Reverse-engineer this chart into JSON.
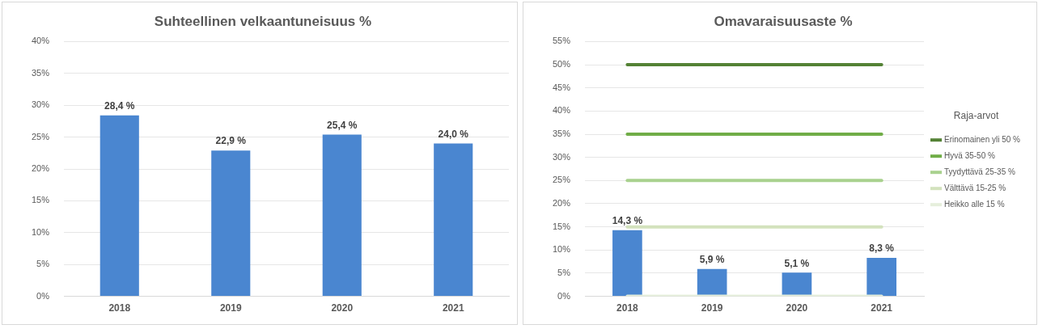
{
  "chart_data": [
    {
      "type": "bar",
      "title": "Suhteellinen velkaantuneisuus %",
      "categories": [
        "2018",
        "2019",
        "2020",
        "2021"
      ],
      "series": [
        {
          "color": "#4a86d0",
          "values": [
            28.4,
            22.9,
            25.4,
            24.0
          ],
          "value_labels": [
            "28,4 %",
            "22,9 %",
            "25,4 %",
            "24,0 %"
          ]
        }
      ],
      "ylim": [
        0,
        40
      ],
      "yticks": [
        {
          "value": 0,
          "label": "0%"
        },
        {
          "value": 5,
          "label": "5%"
        },
        {
          "value": 10,
          "label": "10%"
        },
        {
          "value": 15,
          "label": "15%"
        },
        {
          "value": 20,
          "label": "20%"
        },
        {
          "value": 25,
          "label": "25%"
        },
        {
          "value": 30,
          "label": "30%"
        },
        {
          "value": 35,
          "label": "35%"
        },
        {
          "value": 40,
          "label": "40%"
        }
      ],
      "grid": "y",
      "legend": false
    },
    {
      "type": "bar",
      "title": "Omavaraisuusaste %",
      "legend_title": "Raja-arvot",
      "categories": [
        "2018",
        "2019",
        "2020",
        "2021"
      ],
      "series": [
        {
          "color": "#4a86d0",
          "values": [
            14.3,
            5.9,
            5.1,
            8.3
          ],
          "value_labels": [
            "14,3 %",
            "5,9 %",
            "5,1 %",
            "8,3 %"
          ]
        },
        {
          "type": "line",
          "name": "Erinomainen yli 50 %",
          "color": "#548235",
          "values": [
            50,
            50,
            50,
            50
          ]
        },
        {
          "type": "line",
          "name": "Hyvä 35-50 %",
          "color": "#70ad47",
          "values": [
            35,
            35,
            35,
            35
          ]
        },
        {
          "type": "line",
          "name": "Tyydyttävä 25-35 %",
          "color": "#a9d18e",
          "values": [
            25,
            25,
            25,
            25
          ]
        },
        {
          "type": "line",
          "name": "Välttävä 15-25 %",
          "color": "#d3e2bd",
          "values": [
            15,
            15,
            15,
            15
          ]
        },
        {
          "type": "line",
          "name": "Heikko alle 15 %",
          "color": "#e6efdc",
          "values": [
            0,
            0,
            0,
            0
          ]
        }
      ],
      "ylim": [
        0,
        55
      ],
      "yticks": [
        {
          "value": 0,
          "label": "0%"
        },
        {
          "value": 5,
          "label": "5%"
        },
        {
          "value": 10,
          "label": "10%"
        },
        {
          "value": 15,
          "label": "15%"
        },
        {
          "value": 20,
          "label": "20%"
        },
        {
          "value": 25,
          "label": "25%"
        },
        {
          "value": 30,
          "label": "30%"
        },
        {
          "value": 35,
          "label": "35%"
        },
        {
          "value": 40,
          "label": "40%"
        },
        {
          "value": 45,
          "label": "45%"
        },
        {
          "value": 50,
          "label": "50%"
        },
        {
          "value": 55,
          "label": "55%"
        }
      ],
      "grid": "y",
      "legend": "right",
      "marker": "none"
    }
  ]
}
